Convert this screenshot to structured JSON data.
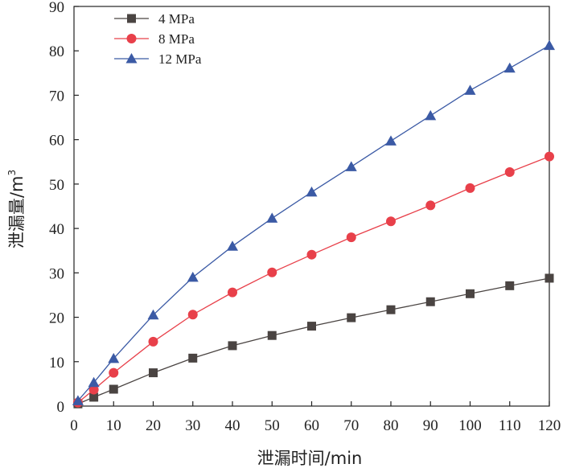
{
  "chart_data": {
    "type": "line",
    "title": "",
    "xlabel": "泄漏时间/min",
    "ylabel_main": "泄漏量/m",
    "ylabel_sup": "3",
    "xlim": [
      0,
      120
    ],
    "ylim": [
      0,
      90
    ],
    "xticks": [
      0,
      10,
      20,
      30,
      40,
      50,
      60,
      70,
      80,
      90,
      100,
      110,
      120
    ],
    "yticks": [
      0,
      10,
      20,
      30,
      40,
      50,
      60,
      70,
      80,
      90
    ],
    "legend_position": "top-left",
    "x": [
      1,
      5,
      10,
      20,
      30,
      40,
      50,
      60,
      70,
      80,
      90,
      100,
      110,
      120
    ],
    "series": [
      {
        "name": "4 MPa",
        "marker": "square",
        "color": "#4a4442",
        "values": [
          0.5,
          2.0,
          3.8,
          7.5,
          10.8,
          13.6,
          15.9,
          18.0,
          19.9,
          21.7,
          23.5,
          25.3,
          27.1,
          28.8
        ]
      },
      {
        "name": "8 MPa",
        "marker": "circle",
        "color": "#e8404a",
        "values": [
          0.8,
          3.7,
          7.5,
          14.5,
          20.6,
          25.6,
          30.1,
          34.1,
          38.0,
          41.6,
          45.2,
          49.1,
          52.7,
          56.2
        ]
      },
      {
        "name": "12 MPa",
        "marker": "triangle",
        "color": "#3b5aa5",
        "values": [
          1.2,
          5.3,
          10.7,
          20.5,
          29.0,
          36.0,
          42.3,
          48.2,
          53.9,
          59.7,
          65.4,
          71.1,
          76.1,
          81.2
        ]
      }
    ]
  }
}
